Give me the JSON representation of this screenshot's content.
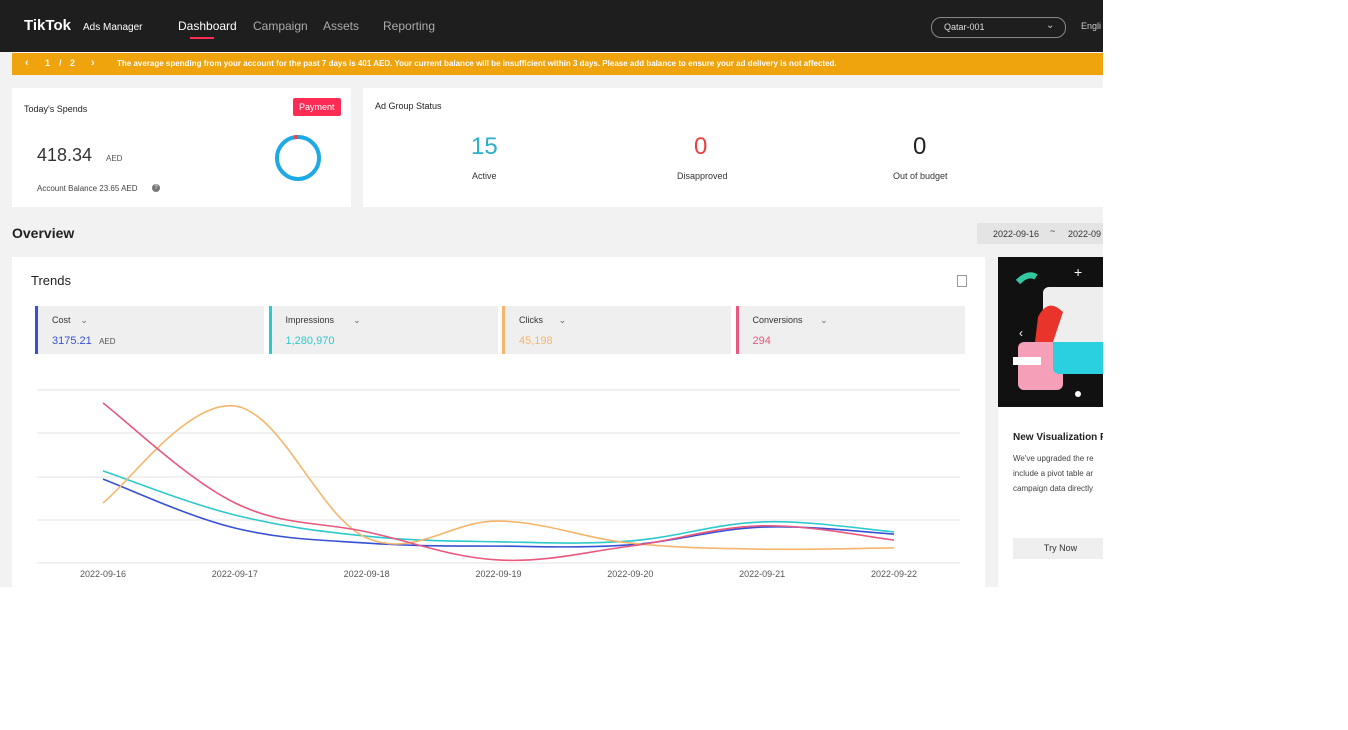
{
  "header": {
    "logo": "TikTok",
    "logo_sub": "Ads Manager",
    "nav": [
      "Dashboard",
      "Campaign",
      "Assets",
      "Reporting"
    ],
    "account": "Qatar-001",
    "language": "Engli"
  },
  "banner": {
    "page": "1",
    "separator": "/",
    "pages": "2",
    "message": "The average spending from your account for the past 7 days is 401 AED. Your current balance will be insufficient within 3 days. Please add balance to ensure your ad delivery is not affected."
  },
  "spends": {
    "title": "Today's Spends",
    "button": "Payment",
    "amount": "418.34",
    "currency": "AED",
    "balance": "Account Balance 23.65 AED"
  },
  "ad_group_status": {
    "title": "Ad Group Status",
    "items": [
      {
        "value": "15",
        "label": "Active"
      },
      {
        "value": "0",
        "label": "Disapproved"
      },
      {
        "value": "0",
        "label": "Out of budget"
      }
    ]
  },
  "overview": {
    "title": "Overview",
    "date_start": "2022-09-16",
    "date_separator": "~",
    "date_end": "2022-09"
  },
  "promo": {
    "title": "New Visualization R",
    "lines": [
      "We've upgraded the re",
      "include a pivot table ar",
      "campaign data directly"
    ],
    "button": "Try Now"
  },
  "chart_data": {
    "type": "line",
    "title": "Trends",
    "categories": [
      "2022-09-16",
      "2022-09-17",
      "2022-09-18",
      "2022-09-19",
      "2022-09-20",
      "2022-09-21",
      "2022-09-22"
    ],
    "ylim": [
      0,
      4
    ],
    "series": [
      {
        "name": "Cost",
        "color": "#3652d4",
        "total": "3175.21",
        "unit": "AED",
        "values": [
          1.94,
          0.81,
          0.46,
          0.39,
          0.42,
          0.83,
          0.67
        ]
      },
      {
        "name": "Impressions",
        "color": "#2ec9cc",
        "total": "1,280,970",
        "values": [
          2.13,
          1.11,
          0.62,
          0.49,
          0.51,
          0.95,
          0.72
        ]
      },
      {
        "name": "Clicks",
        "color": "#f6b56c",
        "total": "45,198",
        "values": [
          1.39,
          3.63,
          0.58,
          0.97,
          0.46,
          0.32,
          0.35
        ]
      },
      {
        "name": "Conversions",
        "color": "#e9587e",
        "total": "294",
        "values": [
          3.7,
          1.39,
          0.72,
          0.07,
          0.39,
          0.86,
          0.53
        ]
      }
    ]
  }
}
